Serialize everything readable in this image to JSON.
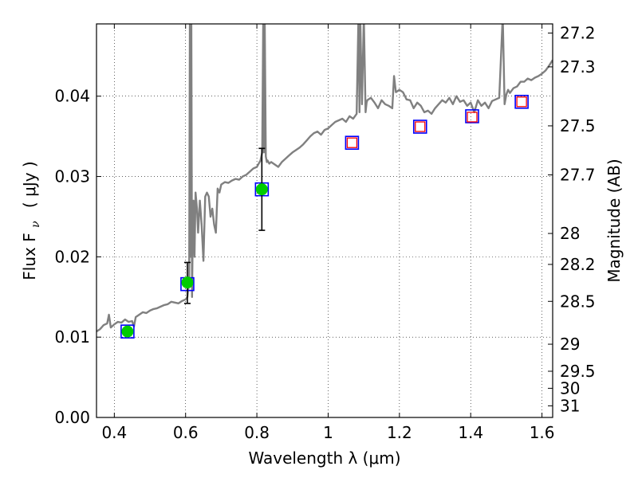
{
  "chart_data": {
    "type": "scatter",
    "title": "",
    "xlabel": "Wavelength  λ (μm)",
    "ylabel": "Flux  F",
    "ylabel_sub": "ν",
    "ylabel_unit": "( μJy )",
    "y2label": "Magnitude (AB)",
    "xlim": [
      0.35,
      1.63
    ],
    "ylim": [
      0.0,
      0.049
    ],
    "grid": true,
    "grid_style": "dotted",
    "x_ticks": [
      0.4,
      0.6,
      0.8,
      1.0,
      1.2,
      1.4,
      1.6
    ],
    "x_tick_labels": [
      "0.4",
      "0.6",
      "0.8",
      "1",
      "1.2",
      "1.4",
      "1.6"
    ],
    "y_ticks": [
      0.0,
      0.01,
      0.02,
      0.03,
      0.04
    ],
    "y_tick_labels": [
      "0.00",
      "0.01",
      "0.02",
      "0.03",
      "0.04"
    ],
    "y2_ticks": [
      27.2,
      27.3,
      27.5,
      27.7,
      28,
      28.2,
      28.5,
      29,
      29.5,
      30,
      31
    ],
    "y2_tick_labels": [
      "27.2",
      "27.3",
      "27.5",
      "27.7",
      "28",
      "28.2",
      "28.5",
      "29",
      "29.5",
      "30",
      "31"
    ],
    "colors": {
      "spectrum": "#808080",
      "model_box": "#0000ff",
      "synth_box": "#ff0000",
      "observed_fill": "#00cc00",
      "errorbar": "#000000"
    },
    "series": [
      {
        "kind": "spectrum",
        "x": [
          0.35,
          0.36,
          0.37,
          0.38,
          0.385,
          0.39,
          0.395,
          0.4,
          0.41,
          0.42,
          0.43,
          0.44,
          0.45,
          0.455,
          0.46,
          0.47,
          0.48,
          0.49,
          0.5,
          0.51,
          0.52,
          0.53,
          0.54,
          0.55,
          0.56,
          0.57,
          0.58,
          0.59,
          0.6,
          0.605,
          0.61,
          0.612,
          0.614,
          0.616,
          0.618,
          0.62,
          0.622,
          0.625,
          0.628,
          0.632,
          0.635,
          0.64,
          0.645,
          0.65,
          0.655,
          0.66,
          0.665,
          0.67,
          0.675,
          0.68,
          0.685,
          0.69,
          0.695,
          0.7,
          0.71,
          0.72,
          0.73,
          0.74,
          0.75,
          0.76,
          0.77,
          0.78,
          0.79,
          0.8,
          0.81,
          0.815,
          0.818,
          0.82,
          0.822,
          0.825,
          0.828,
          0.83,
          0.835,
          0.84,
          0.85,
          0.86,
          0.87,
          0.88,
          0.89,
          0.9,
          0.91,
          0.92,
          0.93,
          0.94,
          0.95,
          0.96,
          0.97,
          0.98,
          0.99,
          1.0,
          1.01,
          1.02,
          1.03,
          1.04,
          1.05,
          1.06,
          1.07,
          1.08,
          1.085,
          1.088,
          1.09,
          1.095,
          1.1,
          1.105,
          1.108,
          1.11,
          1.12,
          1.13,
          1.14,
          1.15,
          1.16,
          1.17,
          1.18,
          1.185,
          1.19,
          1.2,
          1.21,
          1.22,
          1.23,
          1.24,
          1.25,
          1.26,
          1.27,
          1.28,
          1.29,
          1.3,
          1.31,
          1.32,
          1.33,
          1.34,
          1.35,
          1.36,
          1.37,
          1.38,
          1.39,
          1.4,
          1.41,
          1.42,
          1.43,
          1.44,
          1.45,
          1.46,
          1.47,
          1.48,
          1.49,
          1.495,
          1.5,
          1.505,
          1.51,
          1.52,
          1.53,
          1.54,
          1.55,
          1.56,
          1.57,
          1.58,
          1.59,
          1.6,
          1.61,
          1.62,
          1.63
        ],
        "y": [
          0.0107,
          0.011,
          0.0115,
          0.0117,
          0.0128,
          0.0112,
          0.0114,
          0.0116,
          0.0119,
          0.0118,
          0.0122,
          0.0119,
          0.012,
          0.0113,
          0.0125,
          0.0128,
          0.0131,
          0.013,
          0.0133,
          0.0135,
          0.0136,
          0.0138,
          0.014,
          0.0141,
          0.0144,
          0.0143,
          0.0142,
          0.0145,
          0.0147,
          0.015,
          0.017,
          0.05,
          0.02,
          0.05,
          0.015,
          0.023,
          0.027,
          0.02,
          0.028,
          0.026,
          0.023,
          0.027,
          0.024,
          0.0195,
          0.0275,
          0.028,
          0.0275,
          0.025,
          0.026,
          0.024,
          0.023,
          0.0285,
          0.028,
          0.029,
          0.0293,
          0.0292,
          0.0295,
          0.0297,
          0.0296,
          0.03,
          0.0302,
          0.0306,
          0.031,
          0.0312,
          0.032,
          0.033,
          0.05,
          0.033,
          0.05,
          0.0325,
          0.0318,
          0.032,
          0.0316,
          0.0318,
          0.0315,
          0.0312,
          0.0318,
          0.0322,
          0.0326,
          0.033,
          0.0333,
          0.0336,
          0.034,
          0.0345,
          0.035,
          0.0354,
          0.0356,
          0.0352,
          0.0358,
          0.036,
          0.0364,
          0.0368,
          0.037,
          0.0372,
          0.0368,
          0.0375,
          0.0372,
          0.0378,
          0.05,
          0.038,
          0.05,
          0.039,
          0.05,
          0.038,
          0.0392,
          0.0395,
          0.0398,
          0.0392,
          0.0385,
          0.0395,
          0.039,
          0.0388,
          0.0385,
          0.0425,
          0.0405,
          0.0408,
          0.0405,
          0.0396,
          0.0395,
          0.0385,
          0.0392,
          0.0388,
          0.038,
          0.0382,
          0.0378,
          0.0385,
          0.039,
          0.0395,
          0.0392,
          0.0398,
          0.039,
          0.04,
          0.0393,
          0.0395,
          0.0388,
          0.0392,
          0.038,
          0.0395,
          0.0388,
          0.0392,
          0.0385,
          0.0394,
          0.0396,
          0.0398,
          0.05,
          0.039,
          0.0402,
          0.0408,
          0.0404,
          0.041,
          0.0412,
          0.0418,
          0.0418,
          0.0422,
          0.042,
          0.0423,
          0.0425,
          0.0428,
          0.0432,
          0.0438,
          0.0445
        ]
      },
      {
        "kind": "model_photometry_blue_box",
        "x": [
          0.437,
          0.605,
          0.814,
          1.067,
          1.258,
          1.404,
          1.543
        ],
        "y": [
          0.0107,
          0.0166,
          0.0284,
          0.0342,
          0.0362,
          0.0375,
          0.0393
        ]
      },
      {
        "kind": "synthetic_photometry_red_box",
        "x": [
          1.067,
          1.258,
          1.404,
          1.543
        ],
        "y": [
          0.0342,
          0.0362,
          0.0374,
          0.0393
        ]
      },
      {
        "kind": "observed_green_point",
        "x": [
          0.437,
          0.605,
          0.814
        ],
        "y": [
          0.0107,
          0.0168,
          0.0284
        ],
        "yerr_low": [
          0.0004,
          0.0026,
          0.0051
        ],
        "yerr_high": [
          0.0004,
          0.0025,
          0.0051
        ]
      }
    ]
  }
}
